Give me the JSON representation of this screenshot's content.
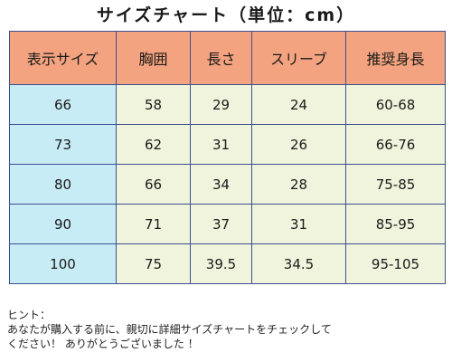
{
  "title": "サイズチャート（単位：cm）",
  "table": {
    "headers": [
      "表示サイズ",
      "胸囲",
      "長さ",
      "スリーブ",
      "推奨身長"
    ],
    "rows": [
      [
        "66",
        "58",
        "29",
        "24",
        "60-68"
      ],
      [
        "73",
        "62",
        "31",
        "26",
        "66-76"
      ],
      [
        "80",
        "66",
        "34",
        "28",
        "75-85"
      ],
      [
        "90",
        "71",
        "37",
        "31",
        "85-95"
      ],
      [
        "100",
        "75",
        "39.5",
        "34.5",
        "95-105"
      ]
    ]
  },
  "hint": {
    "label": "ヒント：",
    "line1": "あなたが購入する前に、親切に詳細サイズチャートをチェックして",
    "line2": "ください！ ありがとうございました ！"
  },
  "colors": {
    "header_bg": "#f3a37f",
    "first_col_bg": "#c8ecf6",
    "cell_bg": "#f1f4dc",
    "border": "#3b4f8f"
  }
}
